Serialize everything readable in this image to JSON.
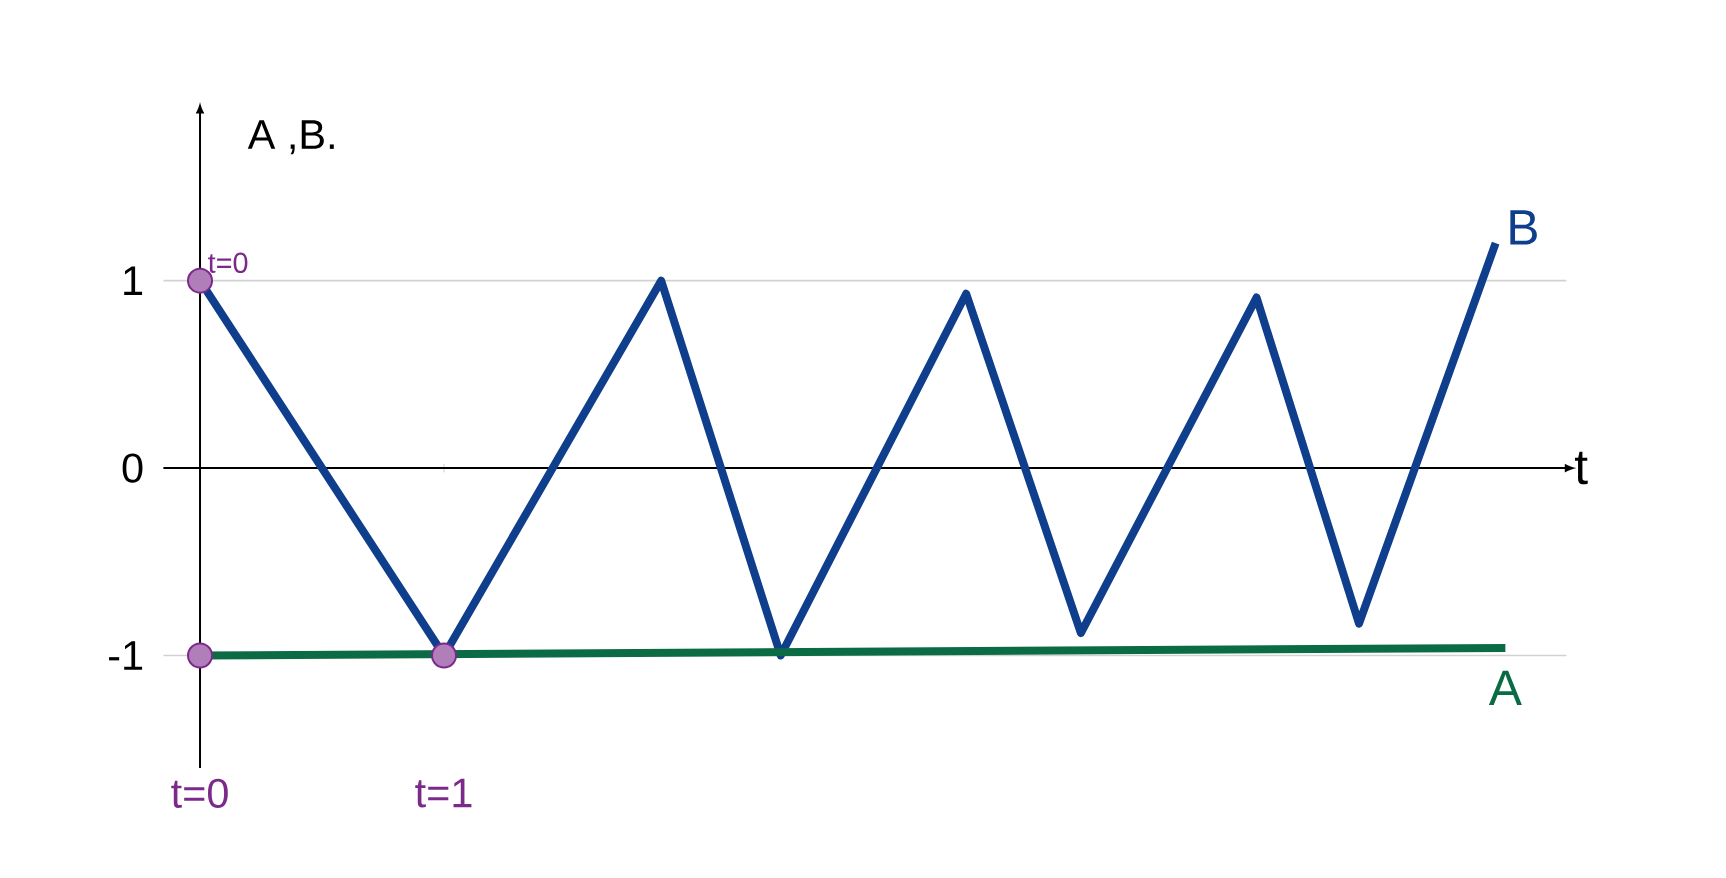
{
  "chart_data": {
    "type": "line",
    "ylabel": "A ,B.",
    "xlabel": "t",
    "xlim": [
      -0.15,
      5.6
    ],
    "ylim": [
      -1.6,
      1.9
    ],
    "xticks": [
      {
        "value": 0,
        "label": "t=0"
      },
      {
        "value": 1,
        "label": "t=1"
      }
    ],
    "yticks": [
      {
        "value": -1,
        "label": "-1"
      },
      {
        "value": 0,
        "label": "0"
      },
      {
        "value": 1,
        "label": "1"
      }
    ],
    "grid": "y",
    "line_style": "solid",
    "annotations": [
      {
        "text": "t=0",
        "x": 0,
        "y": 1
      }
    ],
    "series": [
      {
        "name": "B",
        "color": "#0f3f8c",
        "marker": "none",
        "x": [
          0,
          1,
          1.89,
          2.38,
          3.14,
          3.61,
          4.33,
          4.75,
          5.31
        ],
        "values": [
          1,
          -1,
          1,
          -1,
          0.93,
          -0.88,
          0.91,
          -0.83,
          1.2
        ]
      },
      {
        "name": "A",
        "color": "#0b6b45",
        "marker": "none",
        "x": [
          0,
          5.35
        ],
        "values": [
          -1,
          -0.96
        ]
      },
      {
        "color": "#7b2a8a",
        "type": "scatter",
        "marker": "circle",
        "x": [
          0,
          0,
          1
        ],
        "values": [
          1,
          -1,
          -1
        ]
      }
    ]
  }
}
